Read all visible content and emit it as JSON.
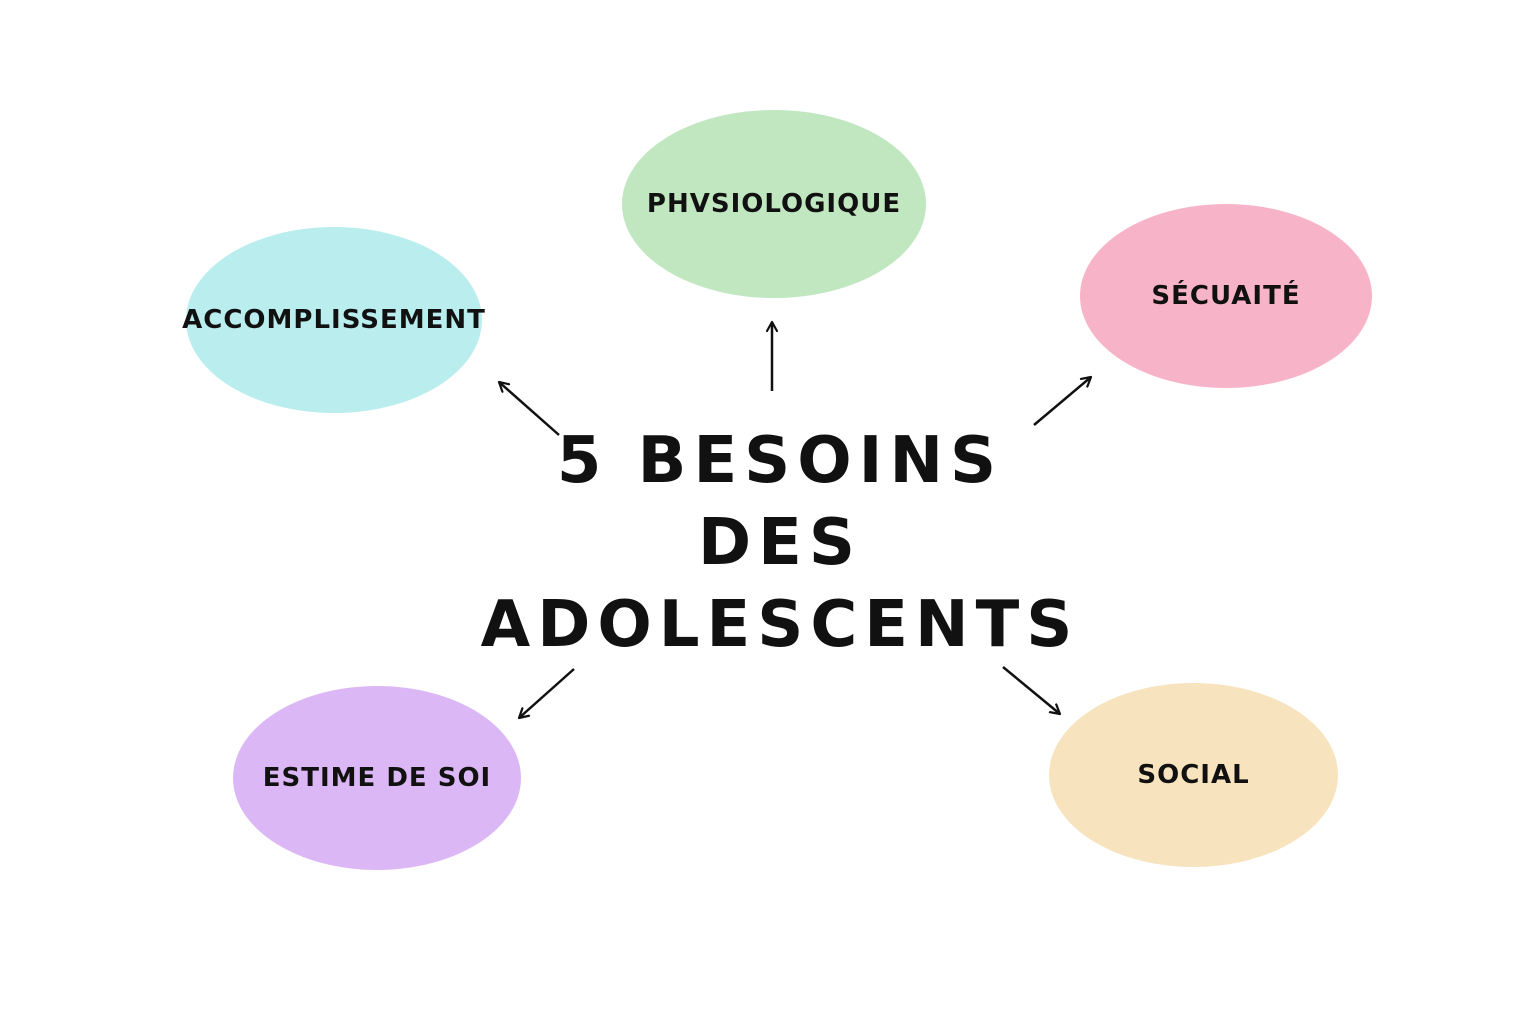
{
  "title_lines": [
    "5 BESOINS",
    "DES",
    "ADOLESCENTS"
  ],
  "needs": [
    {
      "key": "physio",
      "label": "PHVSIOLOGIQUE",
      "color": "#c0e7bf"
    },
    {
      "key": "accomp",
      "label": "ACCOMPLISSEMENT",
      "color": "#b9edee"
    },
    {
      "key": "securite",
      "label": "SÉCUAITÉ",
      "color": "#f7b4c9"
    },
    {
      "key": "estime",
      "label": "ESTIME DE SOI",
      "color": "#dcb7f5"
    },
    {
      "key": "social",
      "label": "SOCIAL",
      "color": "#f7e3bd"
    }
  ],
  "arrow_color": "#111111"
}
